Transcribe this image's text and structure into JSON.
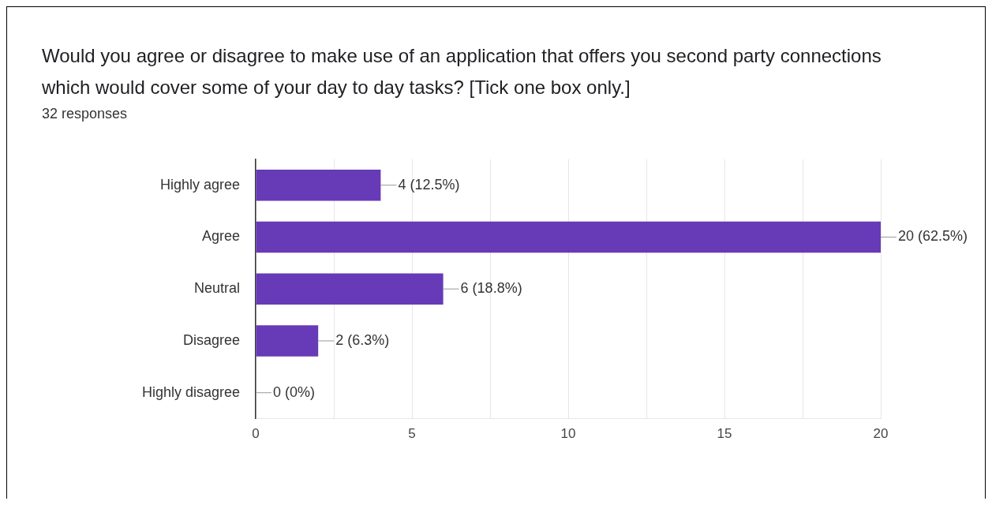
{
  "chart_data": {
    "type": "bar",
    "orientation": "horizontal",
    "title": "Would you agree or disagree to make use of an application that offers you second party connections which would cover some of your day to day tasks?  [Tick one box only.]",
    "subtitle": "32 responses",
    "categories": [
      "Highly agree",
      "Agree",
      "Neutral",
      "Disagree",
      "Highly disagree"
    ],
    "values": [
      4,
      20,
      6,
      2,
      0
    ],
    "value_labels": [
      "4 (12.5%)",
      "20 (62.5%)",
      "6 (18.8%)",
      "2 (6.3%)",
      "0 (0%)"
    ],
    "color": "#673ab7",
    "xlim": [
      0,
      20
    ],
    "xticks": [
      0,
      {
        "value": 2.5,
        "label": null
      },
      5,
      {
        "value": 7.5,
        "label": null
      },
      10,
      {
        "value": 12.5,
        "label": null
      },
      15,
      {
        "value": 17.5,
        "label": null
      },
      20
    ],
    "grid": "x"
  }
}
